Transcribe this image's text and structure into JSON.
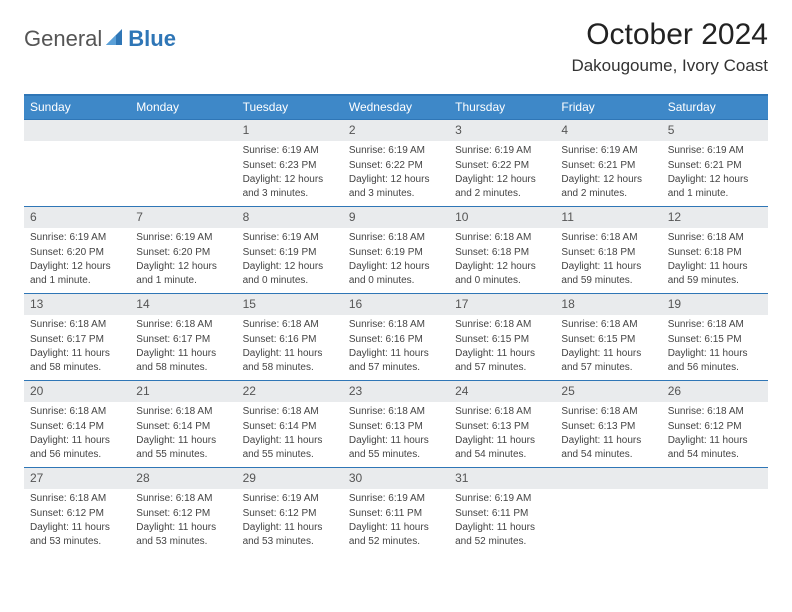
{
  "logo": {
    "text1": "General",
    "text2": "Blue",
    "icon_color": "#2f76b6"
  },
  "title": "October 2024",
  "location": "Dakougoume, Ivory Coast",
  "colors": {
    "header_bg": "#3e88c8",
    "border": "#2f76b6",
    "daynum_bg": "#e9ebed",
    "text": "#444444"
  },
  "dow": [
    "Sunday",
    "Monday",
    "Tuesday",
    "Wednesday",
    "Thursday",
    "Friday",
    "Saturday"
  ],
  "weeks": [
    [
      {
        "n": "",
        "sunrise": "",
        "sunset": "",
        "daylight": ""
      },
      {
        "n": "",
        "sunrise": "",
        "sunset": "",
        "daylight": ""
      },
      {
        "n": "1",
        "sunrise": "Sunrise: 6:19 AM",
        "sunset": "Sunset: 6:23 PM",
        "daylight": "Daylight: 12 hours and 3 minutes."
      },
      {
        "n": "2",
        "sunrise": "Sunrise: 6:19 AM",
        "sunset": "Sunset: 6:22 PM",
        "daylight": "Daylight: 12 hours and 3 minutes."
      },
      {
        "n": "3",
        "sunrise": "Sunrise: 6:19 AM",
        "sunset": "Sunset: 6:22 PM",
        "daylight": "Daylight: 12 hours and 2 minutes."
      },
      {
        "n": "4",
        "sunrise": "Sunrise: 6:19 AM",
        "sunset": "Sunset: 6:21 PM",
        "daylight": "Daylight: 12 hours and 2 minutes."
      },
      {
        "n": "5",
        "sunrise": "Sunrise: 6:19 AM",
        "sunset": "Sunset: 6:21 PM",
        "daylight": "Daylight: 12 hours and 1 minute."
      }
    ],
    [
      {
        "n": "6",
        "sunrise": "Sunrise: 6:19 AM",
        "sunset": "Sunset: 6:20 PM",
        "daylight": "Daylight: 12 hours and 1 minute."
      },
      {
        "n": "7",
        "sunrise": "Sunrise: 6:19 AM",
        "sunset": "Sunset: 6:20 PM",
        "daylight": "Daylight: 12 hours and 1 minute."
      },
      {
        "n": "8",
        "sunrise": "Sunrise: 6:19 AM",
        "sunset": "Sunset: 6:19 PM",
        "daylight": "Daylight: 12 hours and 0 minutes."
      },
      {
        "n": "9",
        "sunrise": "Sunrise: 6:18 AM",
        "sunset": "Sunset: 6:19 PM",
        "daylight": "Daylight: 12 hours and 0 minutes."
      },
      {
        "n": "10",
        "sunrise": "Sunrise: 6:18 AM",
        "sunset": "Sunset: 6:18 PM",
        "daylight": "Daylight: 12 hours and 0 minutes."
      },
      {
        "n": "11",
        "sunrise": "Sunrise: 6:18 AM",
        "sunset": "Sunset: 6:18 PM",
        "daylight": "Daylight: 11 hours and 59 minutes."
      },
      {
        "n": "12",
        "sunrise": "Sunrise: 6:18 AM",
        "sunset": "Sunset: 6:18 PM",
        "daylight": "Daylight: 11 hours and 59 minutes."
      }
    ],
    [
      {
        "n": "13",
        "sunrise": "Sunrise: 6:18 AM",
        "sunset": "Sunset: 6:17 PM",
        "daylight": "Daylight: 11 hours and 58 minutes."
      },
      {
        "n": "14",
        "sunrise": "Sunrise: 6:18 AM",
        "sunset": "Sunset: 6:17 PM",
        "daylight": "Daylight: 11 hours and 58 minutes."
      },
      {
        "n": "15",
        "sunrise": "Sunrise: 6:18 AM",
        "sunset": "Sunset: 6:16 PM",
        "daylight": "Daylight: 11 hours and 58 minutes."
      },
      {
        "n": "16",
        "sunrise": "Sunrise: 6:18 AM",
        "sunset": "Sunset: 6:16 PM",
        "daylight": "Daylight: 11 hours and 57 minutes."
      },
      {
        "n": "17",
        "sunrise": "Sunrise: 6:18 AM",
        "sunset": "Sunset: 6:15 PM",
        "daylight": "Daylight: 11 hours and 57 minutes."
      },
      {
        "n": "18",
        "sunrise": "Sunrise: 6:18 AM",
        "sunset": "Sunset: 6:15 PM",
        "daylight": "Daylight: 11 hours and 57 minutes."
      },
      {
        "n": "19",
        "sunrise": "Sunrise: 6:18 AM",
        "sunset": "Sunset: 6:15 PM",
        "daylight": "Daylight: 11 hours and 56 minutes."
      }
    ],
    [
      {
        "n": "20",
        "sunrise": "Sunrise: 6:18 AM",
        "sunset": "Sunset: 6:14 PM",
        "daylight": "Daylight: 11 hours and 56 minutes."
      },
      {
        "n": "21",
        "sunrise": "Sunrise: 6:18 AM",
        "sunset": "Sunset: 6:14 PM",
        "daylight": "Daylight: 11 hours and 55 minutes."
      },
      {
        "n": "22",
        "sunrise": "Sunrise: 6:18 AM",
        "sunset": "Sunset: 6:14 PM",
        "daylight": "Daylight: 11 hours and 55 minutes."
      },
      {
        "n": "23",
        "sunrise": "Sunrise: 6:18 AM",
        "sunset": "Sunset: 6:13 PM",
        "daylight": "Daylight: 11 hours and 55 minutes."
      },
      {
        "n": "24",
        "sunrise": "Sunrise: 6:18 AM",
        "sunset": "Sunset: 6:13 PM",
        "daylight": "Daylight: 11 hours and 54 minutes."
      },
      {
        "n": "25",
        "sunrise": "Sunrise: 6:18 AM",
        "sunset": "Sunset: 6:13 PM",
        "daylight": "Daylight: 11 hours and 54 minutes."
      },
      {
        "n": "26",
        "sunrise": "Sunrise: 6:18 AM",
        "sunset": "Sunset: 6:12 PM",
        "daylight": "Daylight: 11 hours and 54 minutes."
      }
    ],
    [
      {
        "n": "27",
        "sunrise": "Sunrise: 6:18 AM",
        "sunset": "Sunset: 6:12 PM",
        "daylight": "Daylight: 11 hours and 53 minutes."
      },
      {
        "n": "28",
        "sunrise": "Sunrise: 6:18 AM",
        "sunset": "Sunset: 6:12 PM",
        "daylight": "Daylight: 11 hours and 53 minutes."
      },
      {
        "n": "29",
        "sunrise": "Sunrise: 6:19 AM",
        "sunset": "Sunset: 6:12 PM",
        "daylight": "Daylight: 11 hours and 53 minutes."
      },
      {
        "n": "30",
        "sunrise": "Sunrise: 6:19 AM",
        "sunset": "Sunset: 6:11 PM",
        "daylight": "Daylight: 11 hours and 52 minutes."
      },
      {
        "n": "31",
        "sunrise": "Sunrise: 6:19 AM",
        "sunset": "Sunset: 6:11 PM",
        "daylight": "Daylight: 11 hours and 52 minutes."
      },
      {
        "n": "",
        "sunrise": "",
        "sunset": "",
        "daylight": ""
      },
      {
        "n": "",
        "sunrise": "",
        "sunset": "",
        "daylight": ""
      }
    ]
  ]
}
